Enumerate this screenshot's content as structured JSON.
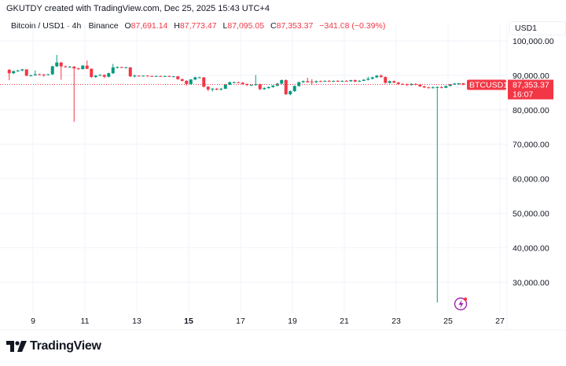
{
  "header": {
    "credit": "GKUTDY created with TradingView.com, Dec 25, 2025 15:43 UTC+4",
    "symbol_line": "Bitcoin / USD1 · 4h · Binance",
    "open_label": "O",
    "open": "87,691.14",
    "high_label": "H",
    "high": "87,773.47",
    "low_label": "L",
    "low": "87,095.05",
    "close_label": "C",
    "close": "87,353.37",
    "change": "−341.08 (−0.39%)"
  },
  "price_scale": {
    "unit": "USD1",
    "symbol_tag": "BTCUSD1",
    "last_price": "87,353.37",
    "countdown": "16:07"
  },
  "colors": {
    "up": "#089981",
    "down": "#f23645",
    "grid": "#f0f3fa",
    "text": "#131722"
  },
  "icons": {
    "alert": "lightning-icon",
    "logo": "tradingview-logo"
  },
  "brand": {
    "name": "TradingView"
  },
  "chart_data": {
    "type": "candlestick",
    "interval": "4h",
    "grid": true,
    "ylim": [
      22000,
      104000
    ],
    "y_ticks": [
      "100,000.00",
      "90,000.00",
      "80,000.00",
      "70,000.00",
      "60,000.00",
      "50,000.00",
      "40,000.00",
      "30,000.00"
    ],
    "y_tick_values": [
      100000,
      90000,
      80000,
      70000,
      60000,
      50000,
      40000,
      30000
    ],
    "x_ticks": [
      "9",
      "11",
      "13",
      "15",
      "17",
      "19",
      "21",
      "23",
      "25",
      "27"
    ],
    "x_tick_days": [
      9,
      11,
      13,
      15,
      17,
      19,
      21,
      23,
      25,
      27
    ],
    "x_tick_bold": "15",
    "last_price_value": 87353.37,
    "candles_columns": [
      "time",
      "open",
      "high",
      "low",
      "close"
    ],
    "candles": [
      [
        "Dec 8 00:00",
        91600,
        91800,
        88600,
        90600
      ],
      [
        "Dec 8 04:00",
        90600,
        91400,
        90400,
        91200
      ],
      [
        "Dec 8 08:00",
        91200,
        91600,
        91000,
        91400
      ],
      [
        "Dec 8 12:00",
        91400,
        91900,
        91200,
        91700
      ],
      [
        "Dec 8 16:00",
        91700,
        91800,
        89700,
        89900
      ],
      [
        "Dec 8 20:00",
        89900,
        90200,
        89700,
        90000
      ],
      [
        "Dec 9 00:00",
        90000,
        91400,
        89900,
        90300
      ],
      [
        "Dec 9 04:00",
        90300,
        90500,
        90000,
        90200
      ],
      [
        "Dec 9 08:00",
        90200,
        90400,
        89600,
        90100
      ],
      [
        "Dec 9 12:00",
        90100,
        90400,
        90000,
        90300
      ],
      [
        "Dec 9 16:00",
        90300,
        92800,
        90100,
        92600
      ],
      [
        "Dec 9 20:00",
        92600,
        95900,
        92400,
        93700
      ],
      [
        "Dec 10 00:00",
        93700,
        93900,
        88700,
        92600
      ],
      [
        "Dec 10 04:00",
        92600,
        92800,
        92200,
        92400
      ],
      [
        "Dec 10 08:00",
        92400,
        92700,
        92300,
        92500
      ],
      [
        "Dec 10 12:00",
        92500,
        92700,
        76500,
        92000
      ],
      [
        "Dec 10 16:00",
        92000,
        92200,
        91600,
        91800
      ],
      [
        "Dec 10 20:00",
        91800,
        93000,
        91700,
        92800
      ],
      [
        "Dec 11 00:00",
        92800,
        94300,
        91800,
        91900
      ],
      [
        "Dec 11 04:00",
        91900,
        92000,
        89300,
        89500
      ],
      [
        "Dec 11 08:00",
        89500,
        90100,
        89300,
        89900
      ],
      [
        "Dec 11 12:00",
        89900,
        90300,
        89800,
        90100
      ],
      [
        "Dec 11 16:00",
        90100,
        90300,
        89200,
        89600
      ],
      [
        "Dec 11 20:00",
        89600,
        90800,
        89400,
        90600
      ],
      [
        "Dec 12 00:00",
        90600,
        93300,
        90400,
        92300
      ],
      [
        "Dec 12 04:00",
        92300,
        92600,
        92000,
        92400
      ],
      [
        "Dec 12 08:00",
        92400,
        92500,
        92100,
        92300
      ],
      [
        "Dec 12 12:00",
        92300,
        92500,
        92200,
        92300
      ],
      [
        "Dec 12 16:00",
        92300,
        92400,
        89500,
        89700
      ],
      [
        "Dec 12 20:00",
        89700,
        90200,
        89400,
        89900
      ],
      [
        "Dec 13 00:00",
        89900,
        90000,
        89700,
        89800
      ],
      [
        "Dec 13 04:00",
        89800,
        90000,
        89700,
        89900
      ],
      [
        "Dec 13 08:00",
        89900,
        90000,
        89700,
        89800
      ],
      [
        "Dec 13 12:00",
        89800,
        89900,
        89600,
        89700
      ],
      [
        "Dec 13 16:00",
        89700,
        89900,
        89600,
        89800
      ],
      [
        "Dec 13 20:00",
        89800,
        89900,
        89600,
        89700
      ],
      [
        "Dec 14 00:00",
        89700,
        89900,
        89500,
        89800
      ],
      [
        "Dec 14 04:00",
        89800,
        89900,
        89600,
        89700
      ],
      [
        "Dec 14 08:00",
        89700,
        89800,
        89500,
        89700
      ],
      [
        "Dec 14 12:00",
        89700,
        89800,
        88700,
        88900
      ],
      [
        "Dec 14 16:00",
        88900,
        89000,
        88200,
        88400
      ],
      [
        "Dec 14 20:00",
        88400,
        88600,
        87000,
        87500
      ],
      [
        "Dec 15 00:00",
        87500,
        88900,
        87300,
        88800
      ],
      [
        "Dec 15 04:00",
        88800,
        89600,
        88600,
        89400
      ],
      [
        "Dec 15 08:00",
        89400,
        89600,
        89200,
        89400
      ],
      [
        "Dec 15 12:00",
        89400,
        89500,
        86500,
        86700
      ],
      [
        "Dec 15 16:00",
        86700,
        86900,
        85400,
        85900
      ],
      [
        "Dec 15 20:00",
        85900,
        86300,
        85300,
        86100
      ],
      [
        "Dec 16 00:00",
        86100,
        86300,
        85700,
        86000
      ],
      [
        "Dec 16 04:00",
        86000,
        86400,
        85600,
        86100
      ],
      [
        "Dec 16 08:00",
        86100,
        87500,
        86000,
        87300
      ],
      [
        "Dec 16 12:00",
        87300,
        88200,
        87100,
        88000
      ],
      [
        "Dec 16 16:00",
        88000,
        88200,
        87700,
        88000
      ],
      [
        "Dec 16 20:00",
        88000,
        88100,
        87700,
        87900
      ],
      [
        "Dec 17 00:00",
        87900,
        88000,
        87300,
        87500
      ],
      [
        "Dec 17 04:00",
        87500,
        87600,
        86900,
        87200
      ],
      [
        "Dec 17 08:00",
        87200,
        87400,
        86900,
        87200
      ],
      [
        "Dec 17 12:00",
        87200,
        90100,
        87000,
        87400
      ],
      [
        "Dec 17 16:00",
        87400,
        87600,
        85700,
        86000
      ],
      [
        "Dec 17 20:00",
        86000,
        86500,
        85800,
        86300
      ],
      [
        "Dec 18 00:00",
        86300,
        86800,
        86100,
        86600
      ],
      [
        "Dec 18 04:00",
        86600,
        87200,
        86400,
        87000
      ],
      [
        "Dec 18 08:00",
        87000,
        87800,
        86800,
        87600
      ],
      [
        "Dec 18 12:00",
        87600,
        88800,
        87400,
        88600
      ],
      [
        "Dec 18 16:00",
        88600,
        88800,
        84300,
        84500
      ],
      [
        "Dec 18 20:00",
        84500,
        85600,
        84200,
        85400
      ],
      [
        "Dec 19 00:00",
        85400,
        87100,
        85200,
        86900
      ],
      [
        "Dec 19 04:00",
        86900,
        88200,
        86700,
        88000
      ],
      [
        "Dec 19 08:00",
        88000,
        88500,
        87800,
        88300
      ],
      [
        "Dec 19 12:00",
        88300,
        89300,
        87900,
        88000
      ],
      [
        "Dec 19 16:00",
        88200,
        88900,
        87200,
        88000
      ],
      [
        "Dec 19 20:00",
        88000,
        88500,
        87800,
        88300
      ],
      [
        "Dec 20 00:00",
        88300,
        88500,
        88100,
        88200
      ],
      [
        "Dec 20 04:00",
        88200,
        88500,
        88100,
        88400
      ],
      [
        "Dec 20 08:00",
        88400,
        88600,
        88200,
        88300
      ],
      [
        "Dec 20 12:00",
        88300,
        88500,
        88100,
        88400
      ],
      [
        "Dec 20 16:00",
        88400,
        88600,
        88200,
        88300
      ],
      [
        "Dec 20 20:00",
        88300,
        88500,
        88100,
        88400
      ],
      [
        "Dec 21 00:00",
        88400,
        88600,
        88200,
        88300
      ],
      [
        "Dec 21 04:00",
        88300,
        88700,
        88100,
        88600
      ],
      [
        "Dec 21 08:00",
        88600,
        88800,
        88000,
        88200
      ],
      [
        "Dec 21 12:00",
        88200,
        88600,
        88100,
        88400
      ],
      [
        "Dec 21 16:00",
        88400,
        88900,
        88300,
        88700
      ],
      [
        "Dec 21 20:00",
        88700,
        89600,
        88500,
        89000
      ],
      [
        "Dec 22 00:00",
        89000,
        89600,
        88800,
        89400
      ],
      [
        "Dec 22 04:00",
        89400,
        90100,
        89200,
        89900
      ],
      [
        "Dec 22 08:00",
        89900,
        90300,
        89300,
        89500
      ],
      [
        "Dec 22 12:00",
        89500,
        89700,
        87600,
        87800
      ],
      [
        "Dec 22 16:00",
        87800,
        88500,
        87600,
        88300
      ],
      [
        "Dec 22 20:00",
        88300,
        88500,
        87700,
        87900
      ],
      [
        "Dec 23 00:00",
        87900,
        88100,
        87300,
        87500
      ],
      [
        "Dec 23 04:00",
        87500,
        87700,
        87200,
        87400
      ],
      [
        "Dec 23 08:00",
        87400,
        87600,
        86900,
        87200
      ],
      [
        "Dec 23 12:00",
        87200,
        87700,
        87000,
        87500
      ],
      [
        "Dec 23 16:00",
        87500,
        87700,
        87100,
        87300
      ],
      [
        "Dec 23 20:00",
        87300,
        87500,
        86600,
        86800
      ],
      [
        "Dec 24 00:00",
        86800,
        87000,
        86300,
        86500
      ],
      [
        "Dec 24 04:00",
        86500,
        86700,
        86200,
        86400
      ],
      [
        "Dec 24 08:00",
        86400,
        86800,
        86200,
        86500
      ],
      [
        "Dec 24 12:00",
        86500,
        86800,
        24100,
        86600
      ],
      [
        "Dec 24 16:00",
        86600,
        86800,
        86200,
        86400
      ],
      [
        "Dec 24 20:00",
        86400,
        87000,
        86300,
        86900
      ],
      [
        "Dec 25 00:00",
        86900,
        87500,
        86800,
        87400
      ],
      [
        "Dec 25 04:00",
        87400,
        87800,
        87200,
        87600
      ],
      [
        "Dec 25 08:00",
        87600,
        87800,
        87300,
        87690
      ],
      [
        "Dec 25 12:00",
        87691.14,
        87773.47,
        87095.05,
        87353.37
      ]
    ]
  }
}
